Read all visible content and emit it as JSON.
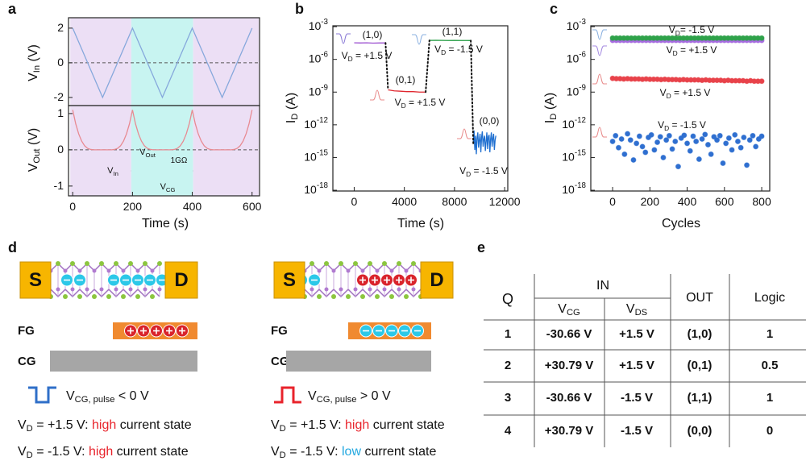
{
  "panel_labels": [
    "a",
    "b",
    "c",
    "d",
    "e"
  ],
  "chart_data": [
    {
      "type": "line",
      "ylabel": "V_{In} (V)",
      "xlim": [
        -14,
        625
      ],
      "ylim": [
        -2.47,
        2.6
      ],
      "yticks": [
        -2,
        0,
        2
      ],
      "reference_line": 0,
      "shaded_regions": [
        {
          "from": -8,
          "to": 196,
          "color": "#ecdff5"
        },
        {
          "from": 196,
          "to": 403,
          "color": "#c8f4f1"
        },
        {
          "from": 403,
          "to": 622,
          "color": "#ecdff5"
        }
      ],
      "series": [
        {
          "color": "#86a8dc",
          "x": [
            0,
            100,
            200,
            300,
            400,
            500,
            600
          ],
          "values": [
            2,
            -2,
            2,
            -2,
            2,
            -2,
            2
          ]
        }
      ]
    },
    {
      "type": "line",
      "ylabel": "V_{Out} (V)",
      "xlabel": "Time (s)",
      "xlim": [
        -14,
        625
      ],
      "ylim": [
        -1.27,
        1.22
      ],
      "yticks": [
        -1,
        0,
        1
      ],
      "xticks": [
        0,
        200,
        400,
        600
      ],
      "reference_line": 0,
      "shaded_regions": [
        {
          "from": -8,
          "to": 196,
          "color": "#ecdff5"
        },
        {
          "from": 196,
          "to": 403,
          "color": "#c8f4f1"
        },
        {
          "from": 403,
          "to": 622,
          "color": "#ecdff5"
        }
      ],
      "annotations": [
        {
          "text": "V_{Out}"
        },
        {
          "text": "1GΩ"
        },
        {
          "text": "V_{In}"
        },
        {
          "text": "V_{CG}"
        }
      ],
      "series": [
        {
          "color": "#e88a92",
          "x": [
            0,
            10,
            20,
            30,
            40,
            50,
            60,
            70,
            130,
            140,
            150,
            160,
            170,
            180,
            190,
            200,
            210,
            220,
            230,
            240,
            250,
            260,
            270,
            330,
            340,
            350,
            360,
            370,
            380,
            390,
            400,
            410,
            420,
            430,
            440,
            450,
            460,
            470,
            530,
            540,
            550,
            560,
            570,
            580,
            590,
            600
          ],
          "values": [
            1.1,
            0.72,
            0.44,
            0.24,
            0.11,
            0.04,
            0.01,
            0,
            0,
            0.01,
            0.04,
            0.11,
            0.24,
            0.44,
            0.72,
            1.1,
            0.72,
            0.44,
            0.24,
            0.11,
            0.04,
            0.01,
            0,
            0,
            0.01,
            0.04,
            0.11,
            0.24,
            0.44,
            0.72,
            1.1,
            0.72,
            0.44,
            0.24,
            0.11,
            0.04,
            0.01,
            0,
            0,
            0.01,
            0.04,
            0.11,
            0.24,
            0.44,
            0.72,
            1.1
          ]
        }
      ]
    },
    {
      "type": "line",
      "xlabel": "Time (s)",
      "ylabel": "I_{D} (A)",
      "log_y": true,
      "xlim": [
        -1700,
        12250
      ],
      "xticks": [
        0,
        4000,
        8000,
        12000
      ],
      "ylim": [
        8.5e-19,
        0.0012
      ],
      "yticks": [
        {
          "value": 0.001,
          "label": "10^{-3}"
        },
        {
          "value": 1e-06,
          "label": "10^{-6}"
        },
        {
          "value": 1e-09,
          "label": "10^{-9}"
        },
        {
          "value": 1e-12,
          "label": "10^{-12}"
        },
        {
          "value": 1e-15,
          "label": "10^{-15}"
        },
        {
          "value": 1e-18,
          "label": "10^{-18}"
        }
      ],
      "connectors": "dotted",
      "annotations": [
        {
          "text": "(1,0)",
          "color": "#9b4fd0"
        },
        {
          "text": "V_{D} = +1.5 V",
          "color": "#9b4fd0"
        },
        {
          "text": "(0,1)",
          "color": "#e0262e"
        },
        {
          "text": "V_{D} = +1.5 V",
          "color": "#e0262e"
        },
        {
          "text": "(1,1)",
          "color": "#1f9a3e"
        },
        {
          "text": "V_{D} = -1.5 V",
          "color": "#1f9a3e"
        },
        {
          "text": "(0,0)",
          "color": "#1f6fd0"
        },
        {
          "text": "V_{D} = -1.5 V",
          "color": "#1f6fd0"
        }
      ],
      "series": [
        {
          "color": "#9b4fd0",
          "x": [
            0,
            500,
            1000,
            1500,
            2000,
            2500
          ],
          "values": [
            3.3e-05,
            3.2e-05,
            3.3e-05,
            3.1e-05,
            3.2e-05,
            3.2e-05
          ]
        },
        {
          "color": "#e0262e",
          "x": [
            2700,
            3200,
            3700,
            4200,
            4700,
            5200,
            5700
          ],
          "values": [
            1.6e-09,
            1.3e-09,
            1.2e-09,
            1.1e-09,
            1.1e-09,
            1e-09,
            1e-09
          ]
        },
        {
          "color": "#1f9a3e",
          "x": [
            6000,
            6500,
            7000,
            7500,
            8000,
            8500,
            9000,
            9300
          ],
          "values": [
            5.5e-05,
            5.6e-05,
            5.5e-05,
            5.4e-05,
            5.5e-05,
            5.4e-05,
            5.4e-05,
            5.3e-05
          ]
        },
        {
          "color": "#1f6fd0",
          "x": [
            9500,
            9560,
            9620,
            9680,
            9740,
            9800,
            9860,
            9920,
            9980,
            10040,
            10100,
            10160,
            10220,
            10280,
            10340,
            10400,
            10460,
            10520,
            10580,
            10640,
            10700,
            10760,
            10820,
            10880,
            10940,
            11000,
            11060,
            11120,
            11180,
            11240,
            11300
          ],
          "values": [
            2e-14,
            3e-13,
            5e-15,
            1e-13,
            2e-15,
            6e-14,
            2e-13,
            8e-15,
            4e-14,
            1.5e-13,
            3e-15,
            7e-14,
            2.5e-13,
            1e-14,
            5e-14,
            1e-13,
            4e-15,
            3e-14,
            2e-13,
            6e-15,
            8e-14,
            1.2e-13,
            3e-15,
            5e-14,
            2e-13,
            1e-14,
            6e-14,
            1.5e-13,
            5e-15,
            4e-14,
            1e-13
          ]
        }
      ]
    },
    {
      "type": "scatter",
      "xlabel": "Cycles",
      "ylabel": "I_{D} (A)",
      "log_y": true,
      "xlim": [
        -117,
        843
      ],
      "xticks": [
        0,
        200,
        400,
        600,
        800
      ],
      "ylim": [
        8.5e-19,
        0.0012
      ],
      "yticks": [
        {
          "value": 0.001,
          "label": "10^{-3}"
        },
        {
          "value": 1e-06,
          "label": "10^{-6}"
        },
        {
          "value": 1e-09,
          "label": "10^{-9}"
        },
        {
          "value": 1e-12,
          "label": "10^{-12}"
        },
        {
          "value": 1e-15,
          "label": "10^{-15}"
        },
        {
          "value": 1e-18,
          "label": "10^{-18}"
        }
      ],
      "annotations": [
        {
          "text": "V_{D}= -1.5 V",
          "color": "#1f9a3e"
        },
        {
          "text": "V_{D} = +1.5 V",
          "color": "#9b4fd0"
        },
        {
          "text": "V_{D} = +1.5 V",
          "color": "#e0262e"
        },
        {
          "text": "V_{D} = -1.5 V",
          "color": "#1f6fd0"
        }
      ],
      "series": [
        {
          "color": "#2f6fd0",
          "x": [
            0,
            16,
            32,
            48,
            64,
            80,
            96,
            112,
            128,
            144,
            160,
            176,
            192,
            208,
            224,
            240,
            256,
            272,
            288,
            304,
            320,
            336,
            352,
            368,
            384,
            400,
            416,
            432,
            448,
            464,
            480,
            496,
            512,
            528,
            544,
            560,
            576,
            592,
            608,
            624,
            640,
            656,
            672,
            688,
            704,
            720,
            736,
            752,
            768,
            784,
            800
          ],
          "values": [
            3e-14,
            1e-13,
            8e-15,
            5e-14,
            2e-15,
            1.5e-13,
            4e-14,
            6e-16,
            2e-14,
            9e-14,
            1e-14,
            3e-15,
            7e-14,
            1.2e-13,
            5e-15,
            2.5e-14,
            8e-14,
            1e-15,
            4e-14,
            1e-13,
            6e-15,
            3e-14,
            1.5e-16,
            6e-14,
            1.1e-13,
            2e-14,
            4e-15,
            9e-14,
            3e-14,
            7e-16,
            5e-14,
            1.3e-13,
            1.5e-14,
            2e-15,
            8e-14,
            4e-14,
            1e-13,
            3e-16,
            2e-14,
            6e-14,
            5e-15,
            1.2e-13,
            3e-14,
            8e-15,
            7e-14,
            2e-16,
            4e-14,
            1e-13,
            1e-14,
            5e-14,
            9e-14
          ]
        },
        {
          "color": "#e8424a",
          "x": [
            0,
            20,
            40,
            60,
            80,
            100,
            120,
            140,
            160,
            180,
            200,
            220,
            240,
            260,
            280,
            300,
            320,
            340,
            360,
            380,
            400,
            420,
            440,
            460,
            480,
            500,
            520,
            540,
            560,
            580,
            600,
            620,
            640,
            660,
            680,
            700,
            720,
            740,
            760,
            780,
            800
          ],
          "values": [
            1.8e-08,
            1.7e-08,
            1.7e-08,
            1.6e-08,
            1.7e-08,
            1.6e-08,
            1.6e-08,
            1.6e-08,
            1.5e-08,
            1.6e-08,
            1.5e-08,
            1.5e-08,
            1.5e-08,
            1.4e-08,
            1.5e-08,
            1.4e-08,
            1.4e-08,
            1.4e-08,
            1.3e-08,
            1.4e-08,
            1.3e-08,
            1.3e-08,
            1.3e-08,
            1.3e-08,
            1.2e-08,
            1.3e-08,
            1.2e-08,
            1.2e-08,
            1.2e-08,
            1.2e-08,
            1.1e-08,
            1.2e-08,
            1.1e-08,
            1.1e-08,
            1.1e-08,
            1.1e-08,
            1e-08,
            1.1e-08,
            1e-08,
            1e-08,
            1e-08
          ]
        },
        {
          "color": "#a66be0",
          "x": [
            0,
            20,
            40,
            60,
            80,
            100,
            120,
            140,
            160,
            180,
            200,
            220,
            240,
            260,
            280,
            300,
            320,
            340,
            360,
            380,
            400,
            420,
            440,
            460,
            480,
            500,
            520,
            540,
            560,
            580,
            600,
            620,
            640,
            660,
            680,
            700,
            720,
            740,
            760,
            780,
            800
          ],
          "values": [
            5.5e-05,
            5.5e-05,
            5.5e-05,
            5.5e-05,
            5.5e-05,
            5.5e-05,
            5.5e-05,
            5.5e-05,
            5.5e-05,
            5.5e-05,
            5.5e-05,
            5.5e-05,
            5.5e-05,
            5.5e-05,
            5.5e-05,
            5.5e-05,
            5.5e-05,
            5.5e-05,
            5.5e-05,
            5.5e-05,
            5.5e-05,
            5.5e-05,
            5.5e-05,
            5.5e-05,
            5.5e-05,
            5.5e-05,
            5.5e-05,
            5.5e-05,
            5.5e-05,
            5.5e-05,
            5.5e-05,
            5.5e-05,
            5.5e-05,
            5.5e-05,
            5.5e-05,
            5.5e-05,
            5.5e-05,
            5.5e-05,
            5.5e-05,
            5.5e-05,
            5.5e-05
          ]
        },
        {
          "color": "#2fa24a",
          "x": [
            0,
            20,
            40,
            60,
            80,
            100,
            120,
            140,
            160,
            180,
            200,
            220,
            240,
            260,
            280,
            300,
            320,
            340,
            360,
            380,
            400,
            420,
            440,
            460,
            480,
            500,
            520,
            540,
            560,
            580,
            600,
            620,
            640,
            660,
            680,
            700,
            720,
            740,
            760,
            780,
            800
          ],
          "values": [
            9e-05,
            9e-05,
            9e-05,
            9e-05,
            9e-05,
            9e-05,
            9e-05,
            9e-05,
            9e-05,
            9e-05,
            9e-05,
            9e-05,
            9e-05,
            9e-05,
            9e-05,
            9e-05,
            9e-05,
            9e-05,
            9e-05,
            9e-05,
            9e-05,
            9e-05,
            9e-05,
            9e-05,
            9e-05,
            9e-05,
            9e-05,
            9e-05,
            9e-05,
            9e-05,
            9e-05,
            9e-05,
            9e-05,
            9e-05,
            9e-05,
            9e-05,
            9e-05,
            9e-05,
            9e-05,
            9e-05,
            9e-05
          ]
        }
      ]
    }
  ],
  "diagram": {
    "left": {
      "source": "S",
      "drain": "D",
      "fg": "FG",
      "cg": "CG",
      "pulse": "V_{CG, pulse} < 0 V",
      "states": [
        {
          "lead": "V_{D} = +1.5 V: ",
          "state": "high",
          "tail": " current state",
          "state_color": "#e8232b"
        },
        {
          "lead": "V_{D} = -1.5 V: ",
          "state": "high",
          "tail": " current state",
          "state_color": "#e8232b"
        }
      ]
    },
    "right": {
      "source": "S",
      "drain": "D",
      "fg": "FG",
      "cg": "CG",
      "pulse": "V_{CG, pulse} > 0 V",
      "states": [
        {
          "lead": "V_{D} = +1.5 V: ",
          "state": "high",
          "tail": " current state",
          "state_color": "#e8232b"
        },
        {
          "lead": "V_{D} = -1.5 V: ",
          "state": "low",
          "tail": " current state",
          "state_color": "#22a8e0"
        }
      ]
    }
  },
  "table": {
    "header": {
      "q": "Q",
      "in": "IN",
      "vcg": "V_{CG}",
      "vds": "V_{DS}",
      "out": "OUT",
      "logic": "Logic"
    },
    "rows": [
      [
        "1",
        "-30.66 V",
        "+1.5 V",
        "(1,0)",
        "1"
      ],
      [
        "2",
        "+30.79 V",
        "+1.5 V",
        "(0,1)",
        "0.5"
      ],
      [
        "3",
        "-30.66 V",
        "-1.5 V",
        "(1,1)",
        "1"
      ],
      [
        "4",
        "+30.79 V",
        "-1.5 V",
        "(0,0)",
        "0"
      ]
    ],
    "cell_colors": [
      [
        "#8e3bb0",
        "#1ea5e0",
        "#1ea5e0",
        "#8e3bb0",
        "#1ea5e0"
      ],
      [
        "#e8232b",
        "#e8232b",
        "#1ea5e0",
        "#e8232b",
        "#e8232b"
      ],
      [
        "#1e9a3a",
        "#1ea5e0",
        "#e8232b",
        "#1e9a3a",
        "#1ea5e0"
      ],
      [
        "#1ea5e0",
        "#e8232b",
        "#e8232b",
        "#1ea5e0",
        "#111111"
      ]
    ]
  }
}
